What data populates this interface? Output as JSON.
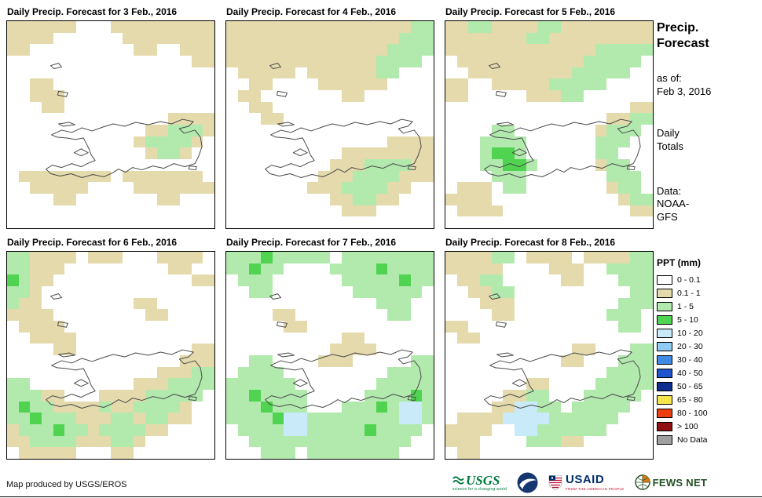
{
  "panels": [
    {
      "title": "Daily Precip. Forecast for 3 Feb., 2016",
      "grid": [
        "111111000111111111",
        "111100000011111111",
        "110000000001100111",
        "000000000000000011",
        "000000000000000000",
        "001100000000000000",
        "001110000000000000",
        "000110000000000000",
        "000000000000001111",
        "000000000000112221",
        "000000000001222210",
        "000000000000122100",
        "000000000000000000",
        "011111111011111110",
        "001111100001111111",
        "000011000000011000",
        "000000000000000000",
        "000000000000000000"
      ]
    },
    {
      "title": "Daily Precip. Forecast for 4 Feb., 2016",
      "grid": [
        "111111111111111122",
        "111111111111111222",
        "111111111111112222",
        "111111111111122220",
        "011111011111122000",
        "001100001111110000",
        "011000000011000000",
        "001100000000000000",
        "000110000000000000",
        "000000000000000000",
        "000000000000001111",
        "000000000011111111",
        "000000000111222211",
        "000000001112222111",
        "000000011122221100",
        "000000000112211000",
        "000000000011100000",
        "000000000000000000"
      ]
    },
    {
      "title": "Daily Precip. Forecast for 5 Feb., 2016",
      "grid": [
        "112211112211111111",
        "111111122111111111",
        "111111111111122222",
        "011111111111222220",
        "001111111112222200",
        "110011111222220000",
        "110000011122000000",
        "000000000000000011",
        "000000000000001122",
        "000022000000012220",
        "000222200000022200",
        "000233200000022000",
        "000223320000012200",
        "000022200000002220",
        "011102200000001220",
        "111100000000000122",
        "011110000000000011",
        "000000000000000000"
      ]
    },
    {
      "title": "Daily Precip. Forecast for 6 Feb., 2016",
      "grid": [
        "221111011100011110",
        "221110000000001100",
        "321100000000000011",
        "221000000000000000",
        "211000000001100000",
        "111100000000110000",
        "011110000000000000",
        "001111000000000000",
        "000011000000000011",
        "000000000000000111",
        "000000000000011122",
        "220000000001112222",
        "222110001111222220",
        "232211112112222100",
        "223222111221221100",
        "122232212222110000",
        "112222111221000000",
        "011111000110000000"
      ]
    },
    {
      "title": "Daily Precip. Forecast for 7 Feb., 2016",
      "grid": [
        "222322222022222222",
        "223220000222232222",
        "022200000022222322",
        "002200000002222220",
        "000000000000022200",
        "000011000000002200",
        "000001100000000000",
        "000000000011000000",
        "000000000111100000",
        "002200001110000022",
        "022220000000002222",
        "222222000000022222",
        "223222200000222232",
        "222322200022232442",
        "222234422222222442",
        "022224422222322220",
        "002222222222222200",
        "000222022222222000"
      ]
    },
    {
      "title": "Daily Precip. Forecast for 8 Feb., 2016",
      "grid": [
        "111122011110111122",
        "111110000111002222",
        "011220000011000222",
        "001122000000000022",
        "000111000000000222",
        "000011000000002220",
        "110000000000000220",
        "011000000000000000",
        "000000000001100022",
        "000000000011000222",
        "000000000000002222",
        "000000011000022222",
        "000001122000222220",
        "000011442202222200",
        "011114444222222000",
        "111100442222220000",
        "111000022211000000",
        "011000000000000000"
      ]
    }
  ],
  "map_palette": {
    "0": "#FFFFFF",
    "1": "#E4DAAC",
    "2": "#B2EAAE",
    "3": "#4FD350",
    "4": "#C9EBF9"
  },
  "sidebar": {
    "title": [
      "Precip.",
      "Forecast"
    ],
    "asof_label": "as of:",
    "asof_value": "Feb 3, 2016",
    "totals": [
      "Daily",
      "Totals"
    ],
    "data_label": "Data:",
    "data_value": [
      "NOAA-",
      "GFS"
    ]
  },
  "legend": {
    "title": "PPT (mm)",
    "entries": [
      {
        "label": "0 - 0.1",
        "color": "#FFFFFF"
      },
      {
        "label": "0.1 - 1",
        "color": "#E4DAAC"
      },
      {
        "label": "1 - 5",
        "color": "#B2EAAE"
      },
      {
        "label": "5 - 10",
        "color": "#4FD350"
      },
      {
        "label": "10 - 20",
        "color": "#C9EBF9"
      },
      {
        "label": "20 - 30",
        "color": "#8FCBF3"
      },
      {
        "label": "30 - 40",
        "color": "#3F8BE4"
      },
      {
        "label": "40 - 50",
        "color": "#2155CE"
      },
      {
        "label": "50 - 65",
        "color": "#0B2E8F"
      },
      {
        "label": "65 - 80",
        "color": "#F6E54B"
      },
      {
        "label": "80 - 100",
        "color": "#EE3E0F"
      },
      {
        "label": "> 100",
        "color": "#901111"
      },
      {
        "label": "No Data",
        "color": "#A0A0A0"
      }
    ]
  },
  "footer": {
    "credit": "Map produced by USGS/EROS",
    "logos": [
      {
        "id": "usgs",
        "text": "USGS",
        "tagline": "science for a changing world",
        "color": "#00793E"
      },
      {
        "id": "noaa",
        "color": "#15366F"
      },
      {
        "id": "usaid",
        "text": "USAID",
        "tagline": "FROM THE AMERICAN PEOPLE",
        "color": "#002F6C",
        "accent": "#BF0A30"
      },
      {
        "id": "fewsnet",
        "text": "FEWS NET",
        "color": "#234F24",
        "accent": "#E07B10"
      }
    ]
  }
}
